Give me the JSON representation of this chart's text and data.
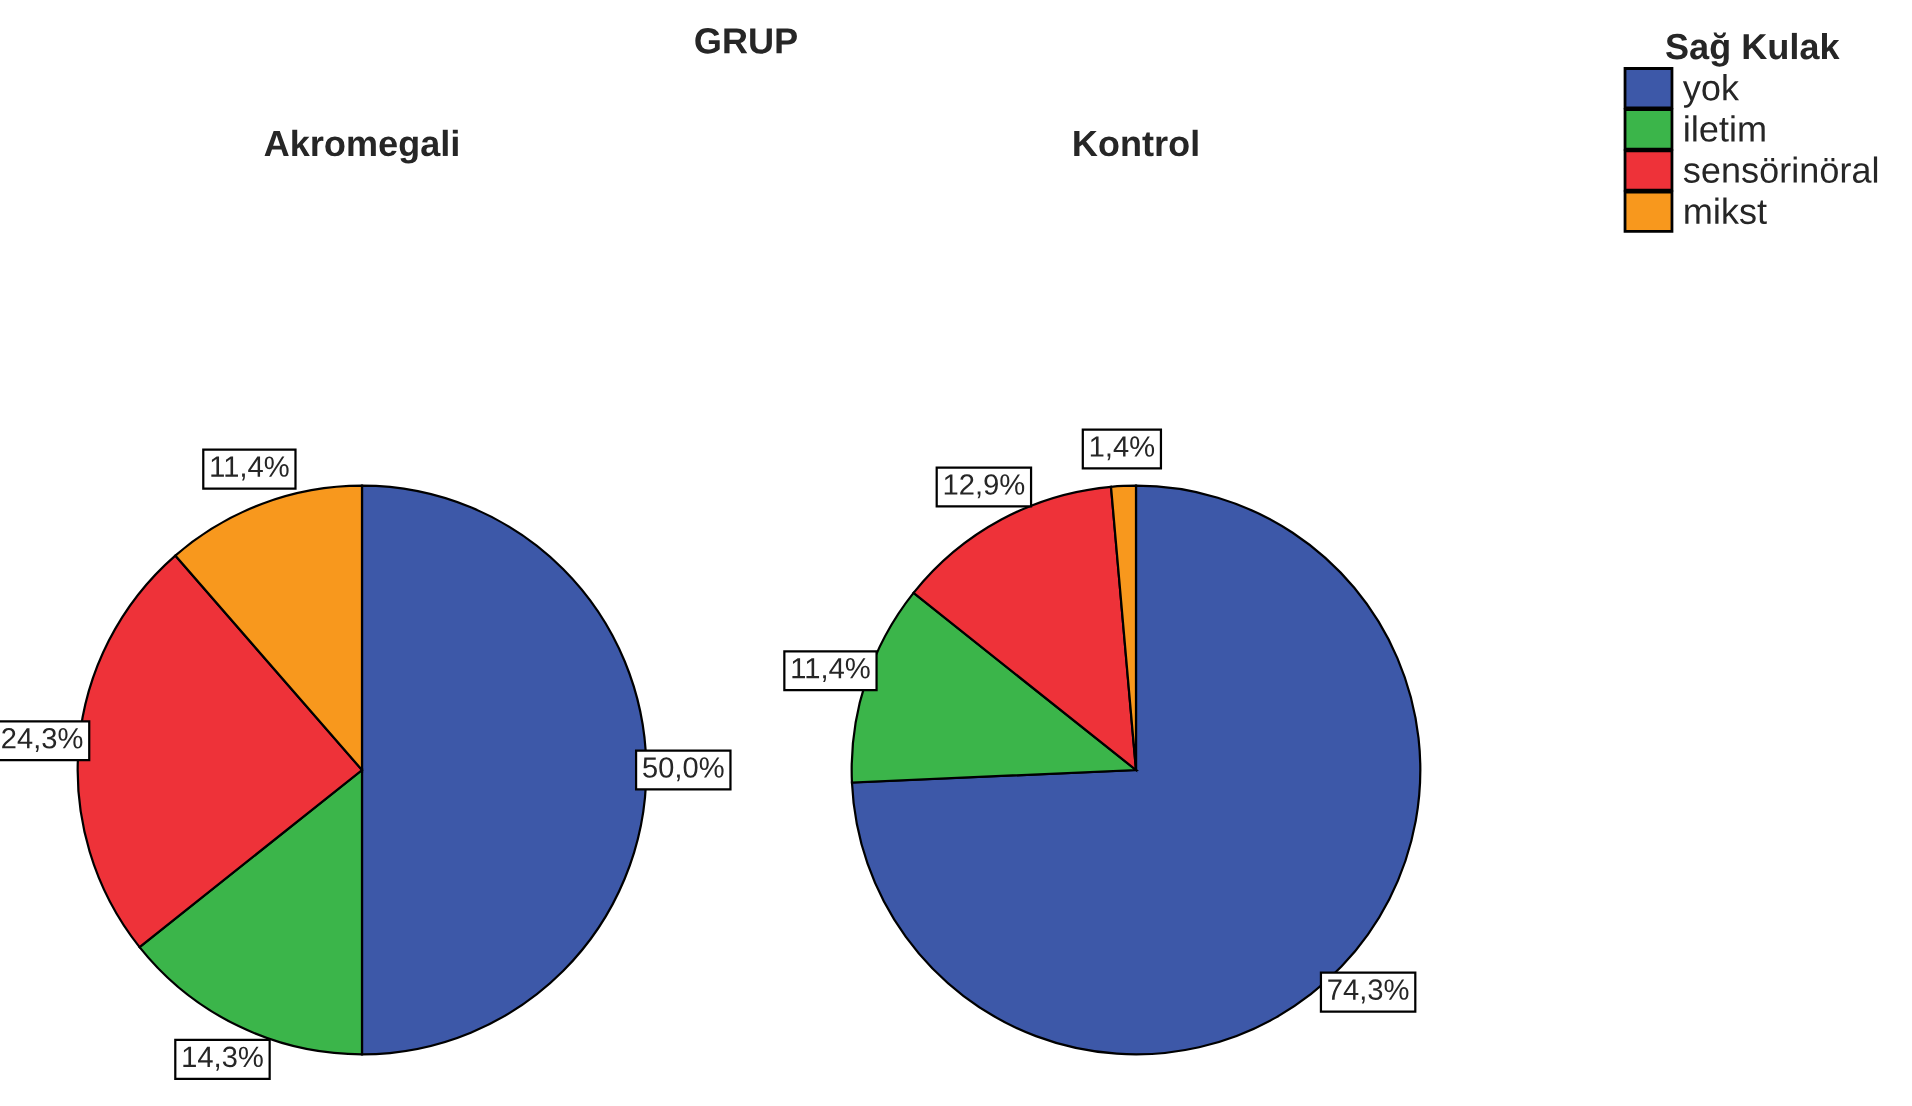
{
  "chart_data": [
    {
      "type": "pie",
      "title": "Akromegali",
      "annotations": [
        "GRUP"
      ],
      "legend": "top right",
      "legend_title": "Sağ Kulak",
      "categories": [
        "yok",
        "iletim",
        "sensörinöral",
        "mikst"
      ],
      "values": [
        50.0,
        14.3,
        24.3,
        11.4
      ],
      "value_labels": [
        "50,0%",
        "14,3%",
        "24,3%",
        "11,4%"
      ],
      "colors": [
        "#3d58a8",
        "#3bb54a",
        "#ee3239",
        "#f8981d"
      ]
    },
    {
      "type": "pie",
      "title": "Kontrol",
      "categories": [
        null,
        null,
        null,
        null
      ],
      "values": [
        74.3,
        11.4,
        12.9,
        1.4
      ],
      "value_labels": [
        "74,3%",
        "11,4%",
        "12,9%",
        "1,4%"
      ],
      "colors": [
        "#3d58a8",
        "#3bb54a",
        "#ee3239",
        "#f8981d"
      ]
    }
  ]
}
